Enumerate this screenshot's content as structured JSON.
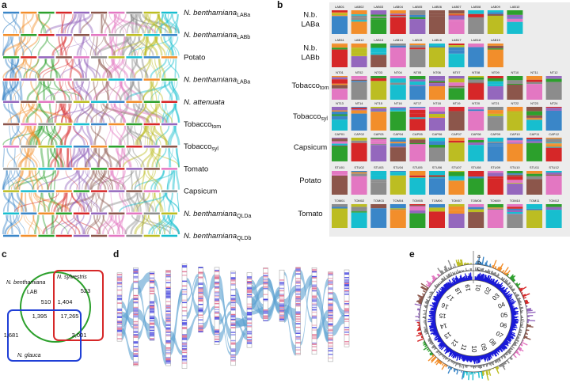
{
  "panel_a": {
    "label": "a",
    "rows": [
      {
        "name": "N. benthamiana",
        "sub": "LABa"
      },
      {
        "name": "N. benthamiana",
        "sub": "LABb"
      },
      {
        "name": "Potato"
      },
      {
        "name": "N. benthamiana",
        "sub": "LABa"
      },
      {
        "name": "N. attenuata"
      },
      {
        "name": "Tobacco",
        "sub": "tom"
      },
      {
        "name": "Tobacco",
        "sub": "syl"
      },
      {
        "name": "Tomato"
      },
      {
        "name": "Capsicum"
      },
      {
        "name": "N. benthamiana",
        "sub": "QLDa"
      },
      {
        "name": "N. benthamiana",
        "sub": "QLDb"
      }
    ]
  },
  "panel_b": {
    "label": "b",
    "rows": [
      {
        "name": "N.b.",
        "name2": "LABa",
        "chromosomes": [
          "LAB01",
          "LAB02",
          "LAB03",
          "LAB04",
          "LAB05",
          "LAB06",
          "LAB07",
          "LAB08",
          "LAB09",
          "LAB10"
        ]
      },
      {
        "name": "N.b.",
        "name2": "LABb",
        "chromosomes": [
          "LAB11",
          "LAB12",
          "LAB13",
          "LAB14",
          "LAB15",
          "LAB16",
          "LAB17",
          "LAB18",
          "LAB19"
        ]
      },
      {
        "name": "Tobacco",
        "sub": "tom",
        "chromosomes": [
          "NT01",
          "NT02",
          "NT03",
          "NT04",
          "NT05",
          "NT06",
          "NT07",
          "NT08",
          "NT09",
          "NT10",
          "NT11",
          "NT12"
        ]
      },
      {
        "name": "Tobacco",
        "sub": "syl",
        "chromosomes": [
          "NT13",
          "NT14",
          "NT15",
          "NT16",
          "NT17",
          "NT18",
          "NT19",
          "NT20",
          "NT21",
          "NT22",
          "NT23",
          "NT24"
        ]
      },
      {
        "name": "Capsicum",
        "chromosomes": [
          "CAP01",
          "CAP02",
          "CAP03",
          "CAP04",
          "CAP05",
          "CAP06",
          "CAP07",
          "CAP08",
          "CAP09",
          "CAP10",
          "CAP11",
          "CAP12"
        ]
      },
      {
        "name": "Potato",
        "chromosomes": [
          "STU01",
          "STU02",
          "STU03",
          "STU04",
          "STU05",
          "STU06",
          "STU07",
          "STU08",
          "STU09",
          "STU10",
          "STU11",
          "STU12"
        ]
      },
      {
        "name": "Tomato",
        "chromosomes": [
          "TOM01",
          "TOM02",
          "TOM03",
          "TOM04",
          "TOM05",
          "TOM06",
          "TOM07",
          "TOM08",
          "TOM09",
          "TOM10",
          "TOM11",
          "TOM12"
        ]
      }
    ]
  },
  "panel_c": {
    "label": "c",
    "sets": [
      "N. benthamiana",
      "LAB",
      "N. sylvestris",
      "N. glauca"
    ],
    "counts": [
      "510",
      "523",
      "1,404",
      "1,395",
      "17,265",
      "1,681",
      "3,001"
    ]
  },
  "panel_d": {
    "label": "d"
  },
  "panel_e": {
    "label": "e",
    "tracks": [
      "a",
      "b",
      "c"
    ],
    "chromosomes": [
      "01",
      "02",
      "03",
      "04",
      "05",
      "06",
      "07",
      "08",
      "09",
      "10",
      "11",
      "12",
      "13",
      "14",
      "15",
      "16",
      "17",
      "18",
      "19"
    ]
  }
}
